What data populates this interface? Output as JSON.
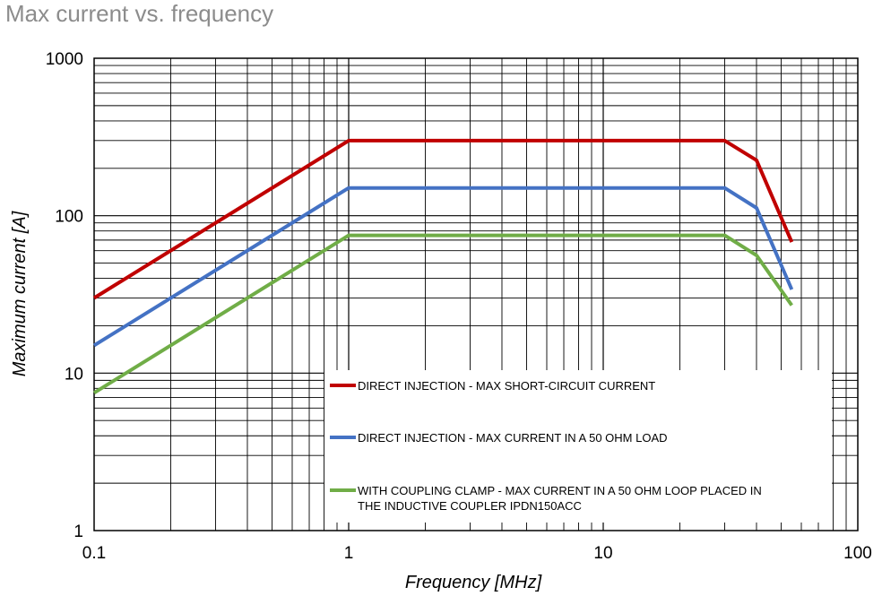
{
  "title": "Max current vs. frequency",
  "chart_data": {
    "type": "line",
    "title": "Max current vs. frequency",
    "xlabel": "Frequency [MHz]",
    "ylabel": "Maximum current  [A]",
    "xscale": "log",
    "yscale": "log",
    "xlim": [
      0.1,
      100
    ],
    "ylim": [
      1,
      1000
    ],
    "grid": true,
    "x_tick_labels": [
      "0.1",
      "1",
      "10",
      "100"
    ],
    "y_tick_labels": [
      "1",
      "10",
      "100",
      "1000"
    ],
    "legend_position": "bottom-right",
    "series": [
      {
        "name": "DIRECT INJECTION - MAX SHORT-CIRCUIT CURRENT",
        "color": "#c00000",
        "x": [
          0.1,
          1,
          30,
          40,
          55
        ],
        "y": [
          30,
          300,
          300,
          225,
          68
        ]
      },
      {
        "name": "DIRECT INJECTION - MAX CURRENT IN A 50 OHM LOAD",
        "color": "#4472c4",
        "x": [
          0.1,
          1,
          30,
          40,
          55
        ],
        "y": [
          15,
          150,
          150,
          112,
          34
        ]
      },
      {
        "name": "WITH COUPLING CLAMP - MAX CURRENT IN A 50 OHM LOOP PLACED IN THE INDUCTIVE COUPLER IPDN150ACC",
        "name_lines": [
          "WITH COUPLING CLAMP - MAX CURRENT IN A 50 OHM LOOP PLACED IN",
          "THE INDUCTIVE COUPLER IPDN150ACC"
        ],
        "color": "#70ad47",
        "x": [
          0.1,
          1,
          30,
          40,
          55
        ],
        "y": [
          7.5,
          75,
          75,
          56,
          27
        ]
      }
    ]
  }
}
